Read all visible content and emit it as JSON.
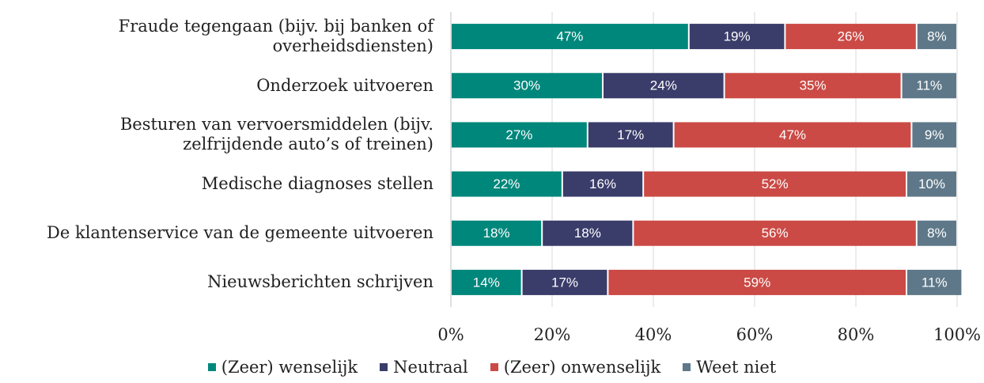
{
  "chart_data": {
    "type": "stacked_barh",
    "categories": [
      "Fraude tegengaan (bijv. bij banken of\noverheidsdiensten)",
      "Onderzoek uitvoeren",
      "Besturen van vervoersmiddelen (bijv.\nzelfrijdende auto’s of treinen)",
      "Medische diagnoses stellen",
      "De klantenservice van de gemeente uitvoeren",
      "Nieuwsberichten schrijven"
    ],
    "series": [
      {
        "name": "(Zeer) wenselijk",
        "color": "#00877b",
        "values": [
          47,
          30,
          27,
          22,
          18,
          14
        ],
        "value_labels": [
          "47%",
          "30%",
          "27%",
          "22%",
          "18%",
          "14%"
        ]
      },
      {
        "name": "Neutraal",
        "color": "#3a3c6a",
        "values": [
          19,
          24,
          17,
          16,
          18,
          17
        ],
        "value_labels": [
          "19%",
          "24%",
          "17%",
          "16%",
          "18%",
          "17%"
        ]
      },
      {
        "name": "(Zeer) onwenselijk",
        "color": "#cb4a45",
        "values": [
          26,
          35,
          47,
          52,
          56,
          59
        ],
        "value_labels": [
          "26%",
          "35%",
          "47%",
          "52%",
          "56%",
          "59%"
        ]
      },
      {
        "name": "Weet niet",
        "color": "#5e7889",
        "values": [
          8,
          11,
          9,
          10,
          8,
          11
        ],
        "value_labels": [
          "8%",
          "11%",
          "9%",
          "10%",
          "8%",
          "11%"
        ]
      }
    ],
    "xlim": [
      0,
      100
    ],
    "xticks": [
      {
        "value": 0,
        "label": "0%"
      },
      {
        "value": 20,
        "label": "20%"
      },
      {
        "value": 40,
        "label": "40%"
      },
      {
        "value": 60,
        "label": "60%"
      },
      {
        "value": 80,
        "label": "80%"
      },
      {
        "value": 100,
        "label": "100%"
      }
    ],
    "grid": true,
    "legend": "bottom"
  }
}
